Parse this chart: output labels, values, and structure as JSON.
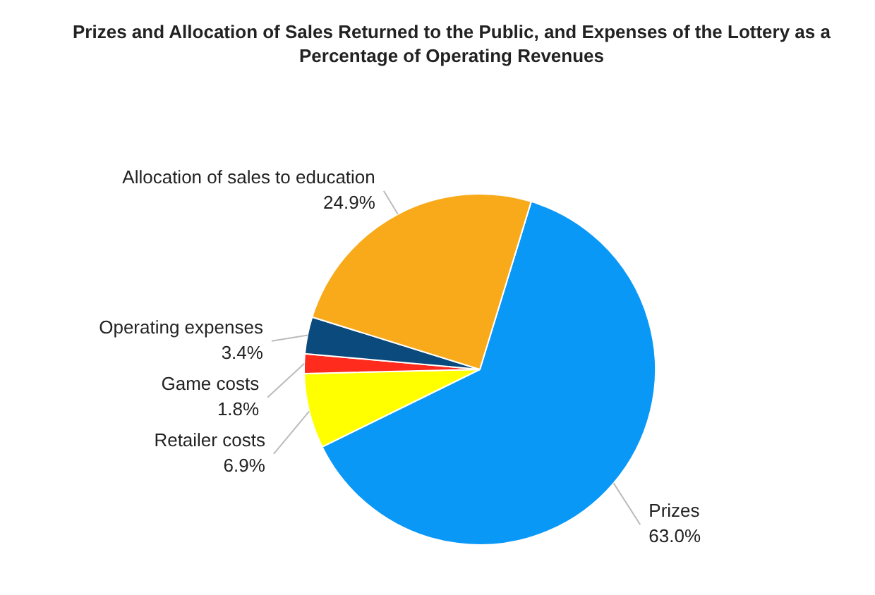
{
  "chart_data": {
    "type": "pie",
    "title": "Prizes and Allocation of Sales Returned to the Public, and Expenses of the Lottery as a Percentage of Operating Revenues",
    "categories": [
      "Prizes",
      "Retailer costs",
      "Game costs",
      "Operating expenses",
      "Allocation of sales to education"
    ],
    "values": [
      63.0,
      6.9,
      1.8,
      3.4,
      24.9
    ],
    "value_labels": [
      "63.0%",
      "6.9%",
      "1.8%",
      "3.4%",
      "24.9%"
    ],
    "colors": [
      "#0a98f7",
      "#ffff00",
      "#ff2b1c",
      "#0b4a7c",
      "#f9aa1a"
    ],
    "legend": false
  }
}
